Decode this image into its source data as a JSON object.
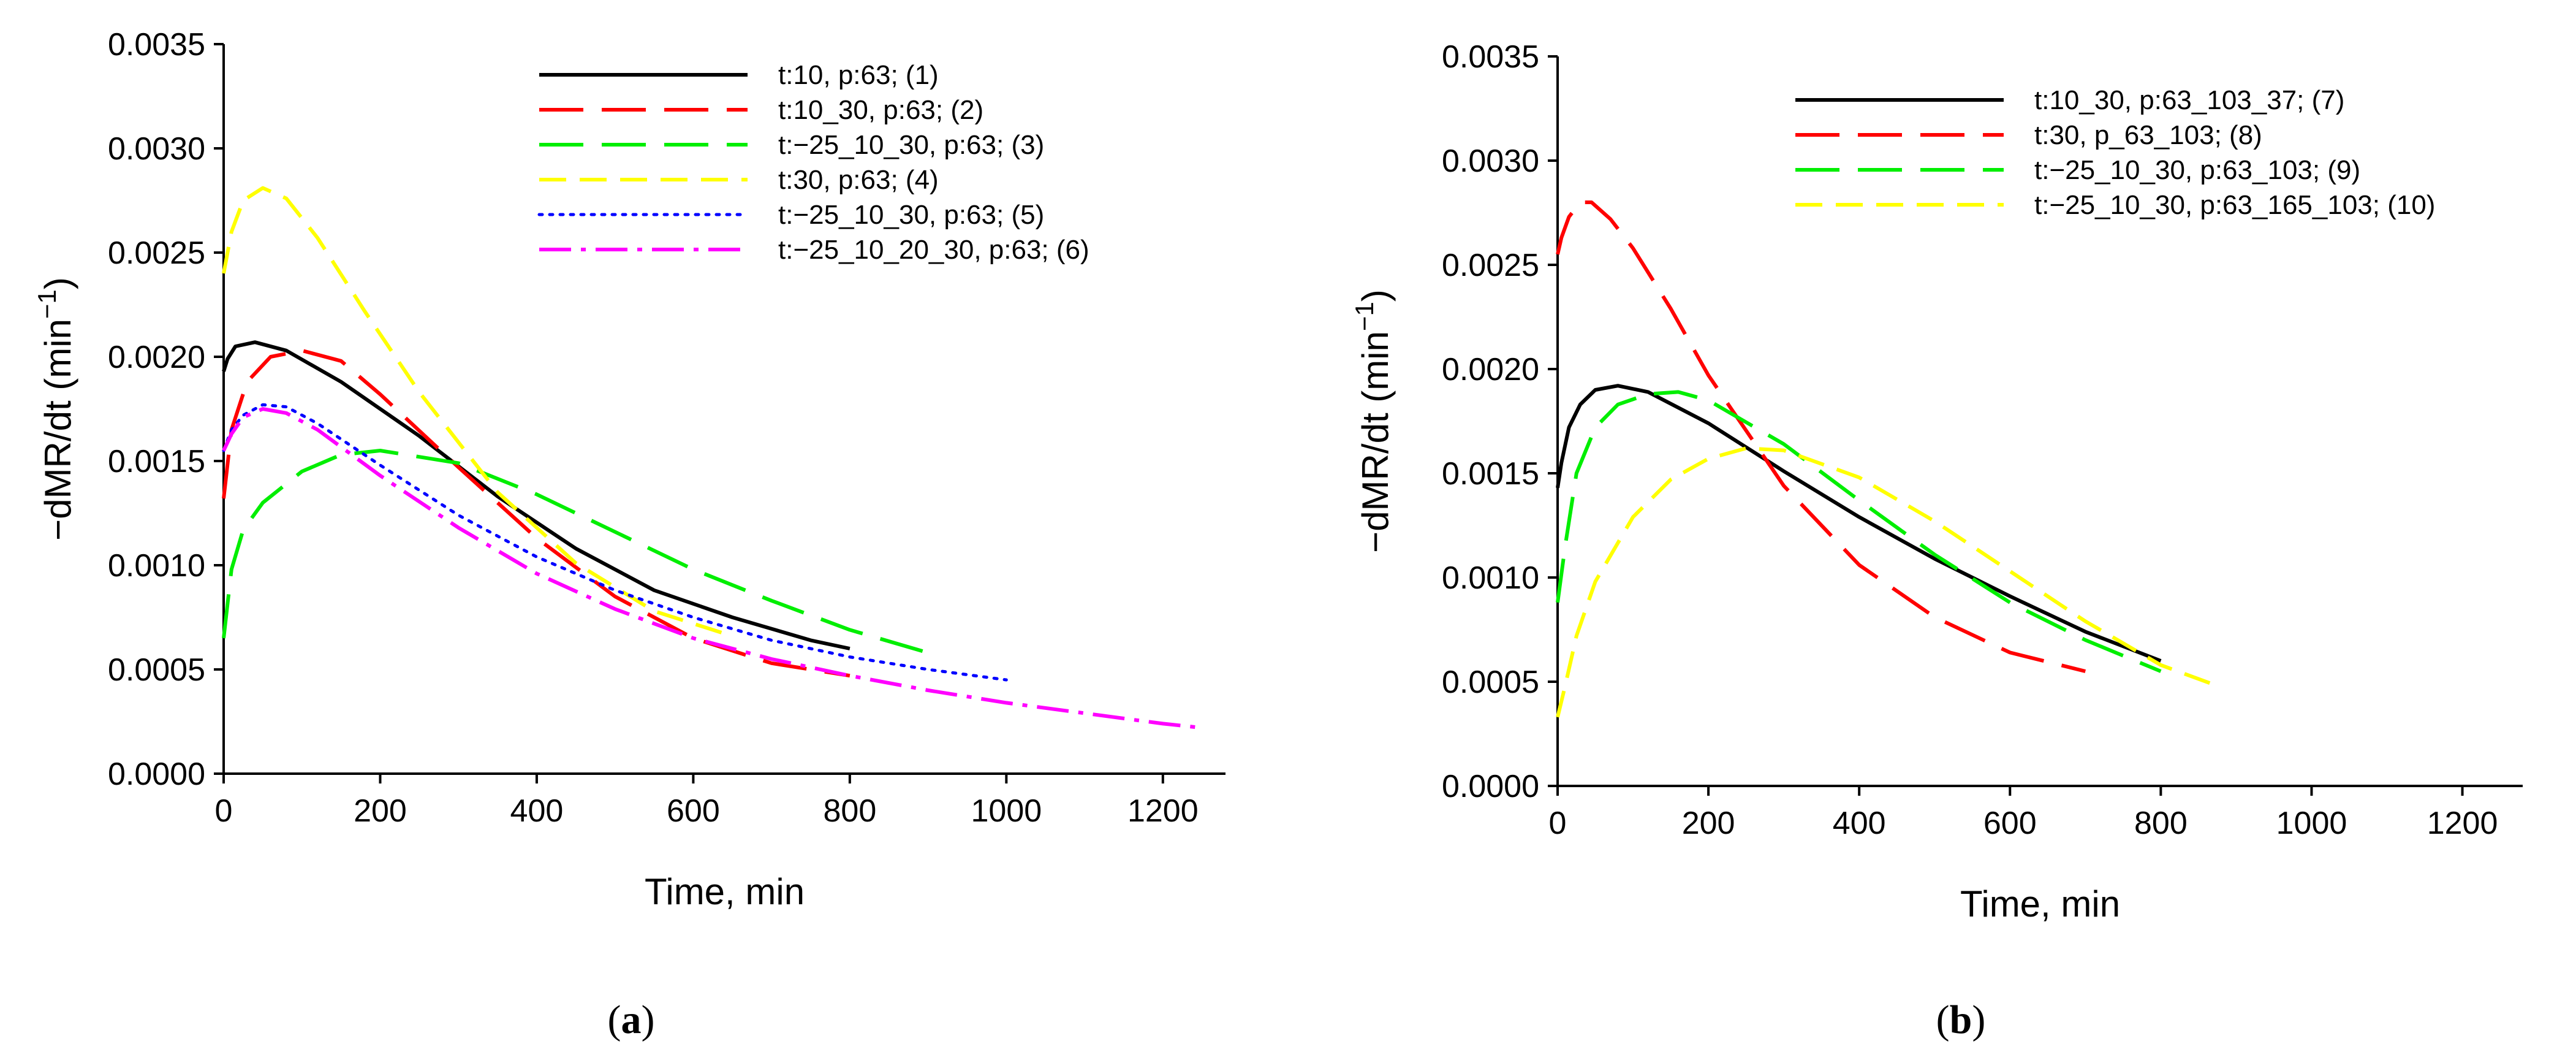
{
  "chart_data": [
    {
      "panel_label": {
        "open": "(",
        "letter": "a",
        "close": ")"
      },
      "type": "line",
      "title": "",
      "xlabel": "Time, min",
      "ylabel": "−dMR/dt (min",
      "ylabel_sup": "−1",
      "ylabel_close": ")",
      "xlim": [
        0,
        1280
      ],
      "ylim": [
        0,
        0.0035
      ],
      "xticks": [
        0,
        200,
        400,
        600,
        800,
        1000,
        1200
      ],
      "xtick_labels": [
        "0",
        "200",
        "400",
        "600",
        "800",
        "1000",
        "1200"
      ],
      "yticks": [
        0,
        0.0005,
        0.001,
        0.0015,
        0.002,
        0.0025,
        0.003,
        0.0035
      ],
      "ytick_labels": [
        "0.0000",
        "0.0005",
        "0.0010",
        "0.0015",
        "0.0020",
        "0.0025",
        "0.0030",
        "0.0035"
      ],
      "grid": false,
      "legend_position": "top-right",
      "series": [
        {
          "name": "t:10, p:63; (1)",
          "color": "#000000",
          "style": "solid",
          "x": [
            0,
            5,
            15,
            40,
            80,
            150,
            250,
            350,
            450,
            550,
            650,
            750,
            800
          ],
          "y": [
            0.00193,
            0.00199,
            0.00205,
            0.00207,
            0.00203,
            0.00188,
            0.00162,
            0.00133,
            0.00108,
            0.00088,
            0.00075,
            0.00064,
            0.0006
          ]
        },
        {
          "name": "t:10_30, p:63; (2)",
          "color": "#ff0000",
          "style": "longdash",
          "x": [
            0,
            10,
            30,
            60,
            100,
            150,
            200,
            300,
            400,
            500,
            600,
            700,
            800
          ],
          "y": [
            0.00132,
            0.00165,
            0.00188,
            0.002,
            0.00203,
            0.00198,
            0.00182,
            0.00147,
            0.00113,
            0.00085,
            0.00065,
            0.00053,
            0.00047
          ]
        },
        {
          "name": "t:−25_10_30, p:63; (3)",
          "color": "#00ee00",
          "style": "longdash",
          "x": [
            0,
            10,
            25,
            50,
            100,
            150,
            200,
            300,
            400,
            500,
            600,
            700,
            800,
            900
          ],
          "y": [
            0.00065,
            0.00098,
            0.00117,
            0.0013,
            0.00145,
            0.00153,
            0.00155,
            0.00149,
            0.00134,
            0.00116,
            0.00098,
            0.00083,
            0.00069,
            0.00058
          ]
        },
        {
          "name": "t:30, p:63; (4)",
          "color": "#ffff00",
          "style": "shortdash",
          "x": [
            0,
            10,
            25,
            50,
            80,
            120,
            180,
            250,
            350,
            450,
            550,
            650
          ],
          "y": [
            0.0024,
            0.0026,
            0.00275,
            0.00281,
            0.00276,
            0.00257,
            0.00222,
            0.00183,
            0.00135,
            0.00101,
            0.00078,
            0.00066
          ]
        },
        {
          "name": "t:−25_10_30, p:63; (5)",
          "color": "#0000ff",
          "style": "dotted",
          "x": [
            0,
            10,
            25,
            50,
            80,
            120,
            200,
            300,
            400,
            500,
            600,
            700,
            800,
            900,
            1000
          ],
          "y": [
            0.00155,
            0.00165,
            0.00172,
            0.00177,
            0.00176,
            0.00168,
            0.00148,
            0.00124,
            0.00104,
            0.00088,
            0.00075,
            0.00064,
            0.00056,
            0.0005,
            0.00045
          ]
        },
        {
          "name": "t:−25_10_20_30, p:63; (6)",
          "color": "#ff00ff",
          "style": "dashdot",
          "x": [
            0,
            10,
            25,
            50,
            80,
            120,
            200,
            300,
            400,
            500,
            600,
            700,
            800,
            900,
            1000,
            1100,
            1200,
            1250
          ],
          "y": [
            0.00155,
            0.00163,
            0.00171,
            0.00175,
            0.00173,
            0.00165,
            0.00143,
            0.00118,
            0.00096,
            0.00079,
            0.00065,
            0.00055,
            0.00047,
            0.0004,
            0.00034,
            0.00029,
            0.00024,
            0.00022
          ]
        }
      ]
    },
    {
      "panel_label": {
        "open": "(",
        "letter": "b",
        "close": ")"
      },
      "type": "line",
      "title": "",
      "xlabel": "Time, min",
      "ylabel": "−dMR/dt (min",
      "ylabel_sup": "−1",
      "ylabel_close": ")",
      "xlim": [
        0,
        1280
      ],
      "ylim": [
        0,
        0.0035
      ],
      "xticks": [
        0,
        200,
        400,
        600,
        800,
        1000,
        1200
      ],
      "xtick_labels": [
        "0",
        "200",
        "400",
        "600",
        "800",
        "1000",
        "1200"
      ],
      "yticks": [
        0,
        0.0005,
        0.001,
        0.0015,
        0.002,
        0.0025,
        0.003,
        0.0035
      ],
      "ytick_labels": [
        "0.0000",
        "0.0005",
        "0.0010",
        "0.0015",
        "0.0020",
        "0.0025",
        "0.0030",
        "0.0035"
      ],
      "grid": false,
      "legend_position": "top-right",
      "series": [
        {
          "name": "t:10_30, p:63_103_37; (7)",
          "color": "#000000",
          "style": "solid",
          "x": [
            0,
            5,
            15,
            30,
            50,
            80,
            120,
            200,
            300,
            400,
            500,
            600,
            700,
            800
          ],
          "y": [
            0.00143,
            0.00155,
            0.00172,
            0.00183,
            0.0019,
            0.00192,
            0.00189,
            0.00174,
            0.00151,
            0.00129,
            0.00109,
            0.00091,
            0.00074,
            0.0006
          ]
        },
        {
          "name": "t:30, p_63_103; (8)",
          "color": "#ff0000",
          "style": "longdash",
          "x": [
            0,
            5,
            15,
            30,
            45,
            70,
            100,
            150,
            200,
            300,
            400,
            500,
            600,
            700
          ],
          "y": [
            0.00255,
            0.00263,
            0.00273,
            0.0028,
            0.0028,
            0.00272,
            0.00258,
            0.00229,
            0.00197,
            0.00144,
            0.00106,
            0.00081,
            0.00064,
            0.00055
          ]
        },
        {
          "name": "t:−25_10_30, p:63_103; (9)",
          "color": "#00ee00",
          "style": "longdash",
          "x": [
            0,
            10,
            25,
            50,
            80,
            120,
            160,
            200,
            300,
            400,
            500,
            600,
            700,
            800
          ],
          "y": [
            0.00088,
            0.00115,
            0.0015,
            0.00172,
            0.00183,
            0.00188,
            0.00189,
            0.00185,
            0.00164,
            0.00137,
            0.00111,
            0.00088,
            0.0007,
            0.00055
          ]
        },
        {
          "name": "t:−25_10_30, p:63_165_103; (10)",
          "color": "#ffff00",
          "style": "shortdash",
          "x": [
            0,
            10,
            25,
            50,
            100,
            150,
            200,
            250,
            300,
            400,
            500,
            600,
            700,
            800,
            875
          ],
          "y": [
            0.00033,
            0.00048,
            0.00072,
            0.00098,
            0.00129,
            0.00147,
            0.00157,
            0.00162,
            0.00161,
            0.00148,
            0.00127,
            0.00103,
            0.00079,
            0.00058,
            0.00048
          ]
        }
      ]
    }
  ]
}
